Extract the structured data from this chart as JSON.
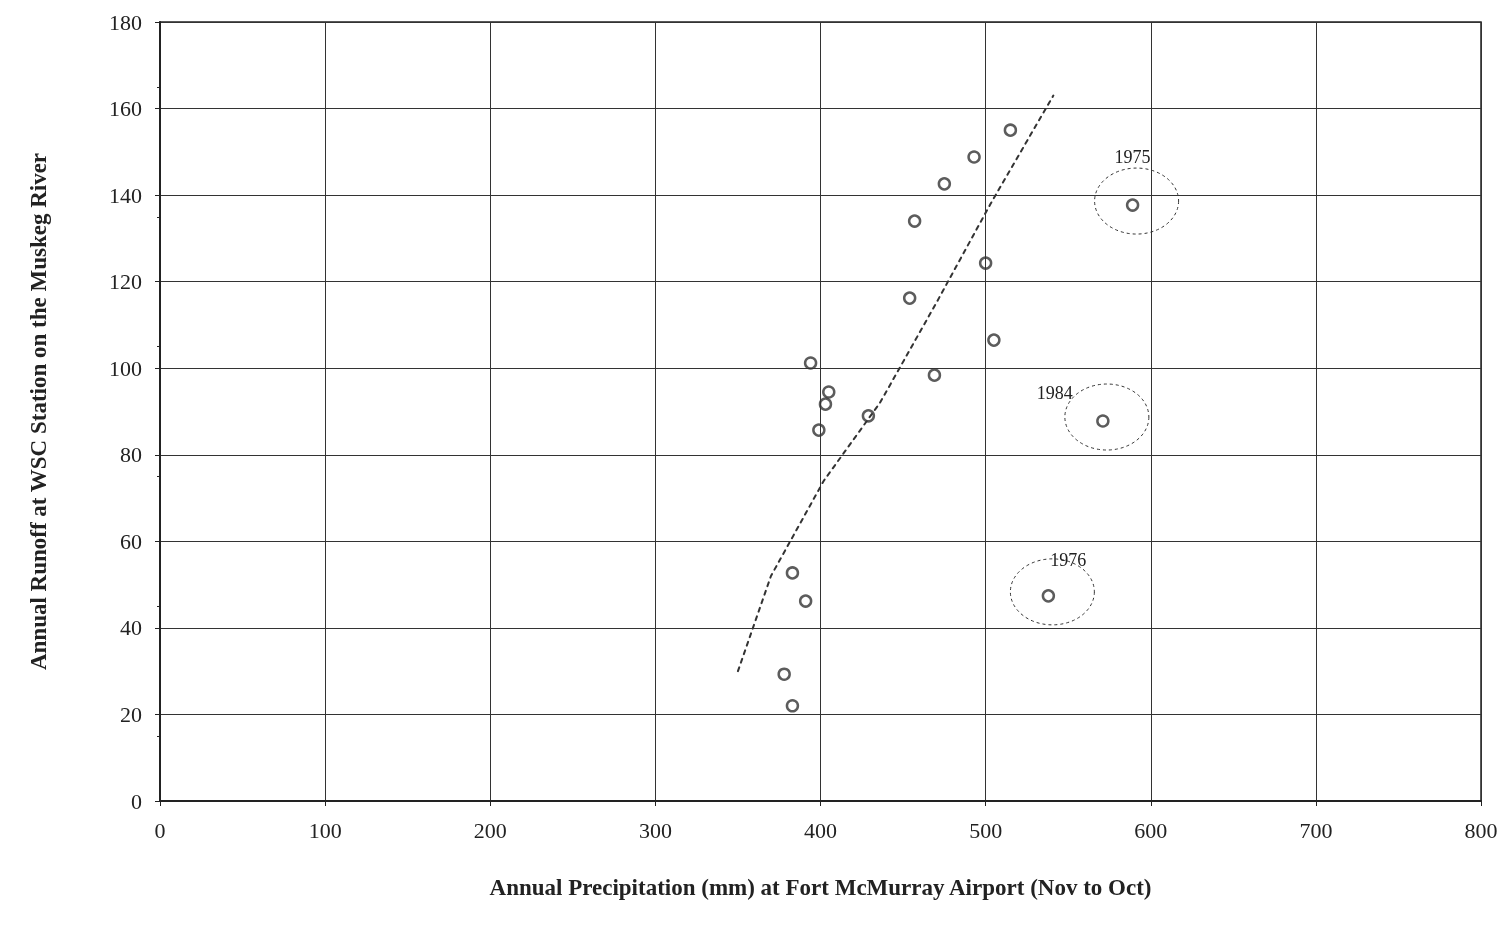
{
  "chart_data": {
    "type": "scatter",
    "xlabel": "Annual Precipitation (mm) at Fort McMurray Airport (Nov to Oct)",
    "ylabel": "Annual Runoff at WSC Station on the Muskeg River",
    "xlim": [
      0,
      800
    ],
    "xticks": [
      0,
      100,
      200,
      300,
      400,
      500,
      600,
      700,
      800
    ],
    "ylim": [
      0,
      180
    ],
    "yticks": [
      0,
      20,
      40,
      60,
      80,
      100,
      120,
      140,
      160,
      180
    ],
    "grid": true,
    "series": [
      {
        "color": "#333333",
        "marker": "circle",
        "x": [
          378,
          383,
          383,
          391,
          394,
          405,
          403,
          399,
          429,
          454,
          457,
          469,
          475,
          493,
          500,
          505,
          515,
          589,
          571,
          538
        ],
        "values": [
          29.3,
          22,
          52.7,
          46.2,
          101.2,
          94.5,
          91.7,
          85.7,
          89,
          116.2,
          134,
          98.4,
          142.6,
          148.8,
          124.3,
          106.5,
          155,
          137.7,
          87.8,
          47.4
        ]
      },
      {
        "type": "line",
        "color": "#333333",
        "marker": "none",
        "line_style": "dashed",
        "x": [
          350,
          370,
          402,
          436,
          470,
          503,
          541
        ],
        "values": [
          30,
          52,
          74,
          92,
          115,
          138,
          163
        ]
      }
    ],
    "annotations": [
      {
        "text": "1975",
        "x": 589,
        "y": 137.7
      },
      {
        "text": "1984",
        "x": 571,
        "y": 87.8
      },
      {
        "text": "1976",
        "x": 538,
        "y": 47.4
      }
    ]
  }
}
